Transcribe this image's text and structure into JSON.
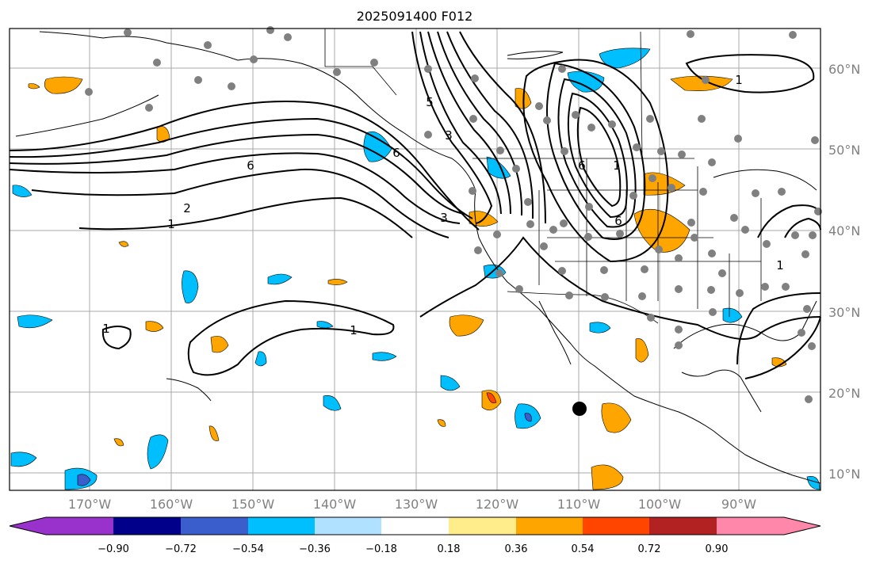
{
  "title": "2025091400 F012",
  "lat_labels": [
    "60°N",
    "50°N",
    "40°N",
    "30°N",
    "20°N",
    "10°N"
  ],
  "lon_labels": [
    "170°W",
    "160°W",
    "150°W",
    "140°W",
    "130°W",
    "120°W",
    "110°W",
    "100°W",
    "90°W"
  ],
  "contour_labels": [
    "1",
    "2",
    "1",
    "6",
    "3",
    "5",
    "6",
    "1",
    "6",
    "1",
    "1",
    "6",
    "3",
    "1"
  ],
  "colorbar": {
    "tick_labels": [
      "−0.90",
      "−0.72",
      "−0.54",
      "−0.36",
      "−0.18",
      "0.18",
      "0.36",
      "0.54",
      "0.72",
      "0.90"
    ],
    "colors": [
      "#9932cc",
      "#00008b",
      "#3a5fcd",
      "#00bfff",
      "#b0e2ff",
      "#ffffff",
      "#ffec8b",
      "#ffa500",
      "#ff4500",
      "#b22222",
      "#ff88aa"
    ]
  },
  "colors": {
    "negative_fill": "#00bfff",
    "positive_fill": "#ffa500",
    "strong_positive": "#ff4500",
    "strong_negative": "#3a5fcd",
    "station_dot": "#808080",
    "grid": "#a8a8a8"
  }
}
